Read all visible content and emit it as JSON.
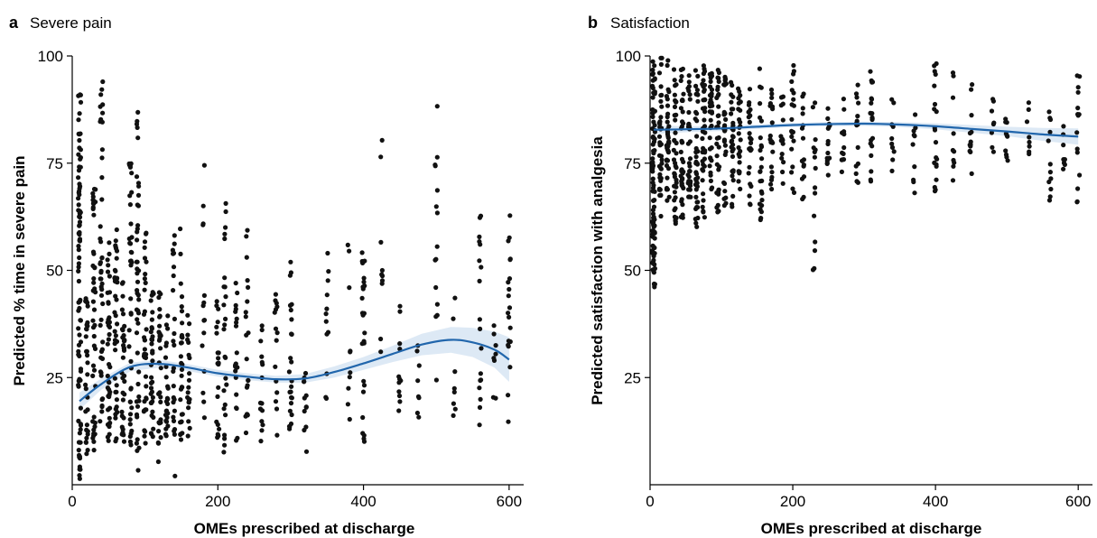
{
  "colors": {
    "points": "#111111",
    "trend": "#2166ac",
    "band": "#c6dbef"
  },
  "chart_data": [
    {
      "type": "scatter",
      "panel_label": "a",
      "title": "Severe pain",
      "xlabel": "OMEs prescribed at discharge",
      "ylabel": "Predicted % time in severe pain",
      "xlim": [
        0,
        620
      ],
      "ylim": [
        0,
        100
      ],
      "xticks": [
        0,
        200,
        400,
        600
      ],
      "yticks": [
        25,
        50,
        75,
        100
      ],
      "grid": false,
      "scatter_clusters": [
        {
          "x": 10,
          "n": 90,
          "y": [
            1,
            91
          ]
        },
        {
          "x": 20,
          "n": 30,
          "y": [
            5,
            45
          ]
        },
        {
          "x": 30,
          "n": 45,
          "y": [
            8,
            70
          ]
        },
        {
          "x": 40,
          "n": 45,
          "y": [
            12,
            94
          ]
        },
        {
          "x": 50,
          "n": 40,
          "y": [
            10,
            60
          ]
        },
        {
          "x": 60,
          "n": 40,
          "y": [
            10,
            60
          ]
        },
        {
          "x": 70,
          "n": 35,
          "y": [
            10,
            50
          ]
        },
        {
          "x": 80,
          "n": 40,
          "y": [
            8,
            75
          ]
        },
        {
          "x": 90,
          "n": 45,
          "y": [
            3,
            87
          ]
        },
        {
          "x": 100,
          "n": 35,
          "y": [
            9,
            60
          ]
        },
        {
          "x": 110,
          "n": 35,
          "y": [
            10,
            45
          ]
        },
        {
          "x": 120,
          "n": 30,
          "y": [
            5,
            45
          ]
        },
        {
          "x": 130,
          "n": 25,
          "y": [
            10,
            40
          ]
        },
        {
          "x": 140,
          "n": 25,
          "y": [
            2,
            60
          ]
        },
        {
          "x": 150,
          "n": 30,
          "y": [
            10,
            60
          ]
        },
        {
          "x": 160,
          "n": 20,
          "y": [
            10,
            40
          ]
        },
        {
          "x": 180,
          "n": 15,
          "y": [
            15,
            77
          ]
        },
        {
          "x": 200,
          "n": 20,
          "y": [
            10,
            45
          ]
        },
        {
          "x": 210,
          "n": 25,
          "y": [
            7,
            66
          ]
        },
        {
          "x": 225,
          "n": 20,
          "y": [
            10,
            55
          ]
        },
        {
          "x": 240,
          "n": 20,
          "y": [
            10,
            60
          ]
        },
        {
          "x": 260,
          "n": 15,
          "y": [
            10,
            40
          ]
        },
        {
          "x": 280,
          "n": 15,
          "y": [
            10,
            45
          ]
        },
        {
          "x": 300,
          "n": 25,
          "y": [
            10,
            54
          ]
        },
        {
          "x": 320,
          "n": 12,
          "y": [
            7,
            30
          ]
        },
        {
          "x": 350,
          "n": 12,
          "y": [
            15,
            60
          ]
        },
        {
          "x": 380,
          "n": 10,
          "y": [
            15,
            62
          ]
        },
        {
          "x": 400,
          "n": 25,
          "y": [
            10,
            56
          ]
        },
        {
          "x": 425,
          "n": 10,
          "y": [
            8,
            81
          ]
        },
        {
          "x": 450,
          "n": 12,
          "y": [
            15,
            45
          ]
        },
        {
          "x": 475,
          "n": 8,
          "y": [
            15,
            40
          ]
        },
        {
          "x": 500,
          "n": 15,
          "y": [
            20,
            91
          ]
        },
        {
          "x": 525,
          "n": 8,
          "y": [
            15,
            45
          ]
        },
        {
          "x": 560,
          "n": 18,
          "y": [
            12,
            65
          ]
        },
        {
          "x": 580,
          "n": 8,
          "y": [
            20,
            40
          ]
        },
        {
          "x": 600,
          "n": 20,
          "y": [
            11,
            64
          ]
        }
      ],
      "trend": {
        "x": [
          10,
          40,
          80,
          120,
          160,
          200,
          240,
          280,
          320,
          360,
          400,
          440,
          480,
          520,
          550,
          580,
          600
        ],
        "y": [
          19.5,
          23.5,
          27.5,
          28.2,
          27.3,
          26.0,
          25.2,
          24.6,
          24.8,
          26.3,
          28.3,
          30.5,
          32.7,
          33.8,
          33.2,
          31.5,
          29.2
        ],
        "lower": [
          17.5,
          22.2,
          26.5,
          27.3,
          26.5,
          25.2,
          24.4,
          23.8,
          23.8,
          25.0,
          26.8,
          28.6,
          30.2,
          30.8,
          29.8,
          27.3,
          24.0
        ],
        "upper": [
          21.5,
          24.8,
          28.5,
          29.1,
          28.1,
          26.8,
          26.0,
          25.4,
          25.8,
          27.6,
          29.8,
          32.4,
          35.2,
          36.8,
          36.6,
          35.7,
          34.4
        ]
      }
    },
    {
      "type": "scatter",
      "panel_label": "b",
      "title": "Satisfaction",
      "xlabel": "OMEs prescribed at discharge",
      "ylabel": "Predicted satisfaction with analgesia",
      "xlim": [
        0,
        620
      ],
      "ylim": [
        0,
        100
      ],
      "xticks": [
        0,
        200,
        400,
        600
      ],
      "yticks": [
        25,
        50,
        75,
        100
      ],
      "grid": false,
      "scatter_clusters": [
        {
          "x": 5,
          "n": 90,
          "y": [
            46,
            100
          ]
        },
        {
          "x": 15,
          "n": 40,
          "y": [
            62,
            100
          ]
        },
        {
          "x": 25,
          "n": 40,
          "y": [
            65,
            99
          ]
        },
        {
          "x": 35,
          "n": 40,
          "y": [
            60,
            98
          ]
        },
        {
          "x": 45,
          "n": 40,
          "y": [
            62,
            97
          ]
        },
        {
          "x": 55,
          "n": 35,
          "y": [
            65,
            96
          ]
        },
        {
          "x": 65,
          "n": 40,
          "y": [
            60,
            99
          ]
        },
        {
          "x": 75,
          "n": 40,
          "y": [
            62,
            99
          ]
        },
        {
          "x": 85,
          "n": 35,
          "y": [
            65,
            98
          ]
        },
        {
          "x": 95,
          "n": 35,
          "y": [
            63,
            97
          ]
        },
        {
          "x": 105,
          "n": 30,
          "y": [
            65,
            96
          ]
        },
        {
          "x": 115,
          "n": 30,
          "y": [
            64,
            95
          ]
        },
        {
          "x": 125,
          "n": 25,
          "y": [
            68,
            94
          ]
        },
        {
          "x": 140,
          "n": 25,
          "y": [
            65,
            93
          ]
        },
        {
          "x": 155,
          "n": 25,
          "y": [
            59,
            98
          ]
        },
        {
          "x": 170,
          "n": 20,
          "y": [
            68,
            95
          ]
        },
        {
          "x": 185,
          "n": 15,
          "y": [
            70,
            92
          ]
        },
        {
          "x": 200,
          "n": 20,
          "y": [
            68,
            100
          ]
        },
        {
          "x": 215,
          "n": 15,
          "y": [
            66,
            96
          ]
        },
        {
          "x": 230,
          "n": 15,
          "y": [
            49,
            95
          ]
        },
        {
          "x": 250,
          "n": 15,
          "y": [
            72,
            92
          ]
        },
        {
          "x": 270,
          "n": 12,
          "y": [
            72,
            90
          ]
        },
        {
          "x": 290,
          "n": 15,
          "y": [
            70,
            94
          ]
        },
        {
          "x": 310,
          "n": 20,
          "y": [
            70,
            99
          ]
        },
        {
          "x": 340,
          "n": 10,
          "y": [
            70,
            90
          ]
        },
        {
          "x": 370,
          "n": 10,
          "y": [
            68,
            88
          ]
        },
        {
          "x": 400,
          "n": 20,
          "y": [
            68,
            99
          ]
        },
        {
          "x": 425,
          "n": 10,
          "y": [
            70,
            97
          ]
        },
        {
          "x": 450,
          "n": 12,
          "y": [
            72,
            96
          ]
        },
        {
          "x": 480,
          "n": 8,
          "y": [
            76,
            90
          ]
        },
        {
          "x": 500,
          "n": 10,
          "y": [
            75,
            88
          ]
        },
        {
          "x": 530,
          "n": 8,
          "y": [
            75,
            92
          ]
        },
        {
          "x": 560,
          "n": 12,
          "y": [
            66,
            95
          ]
        },
        {
          "x": 580,
          "n": 8,
          "y": [
            72,
            90
          ]
        },
        {
          "x": 600,
          "n": 15,
          "y": [
            63,
            97
          ]
        }
      ],
      "trend": {
        "x": [
          5,
          50,
          100,
          150,
          200,
          250,
          300,
          350,
          400,
          450,
          500,
          550,
          600
        ],
        "y": [
          82.8,
          82.9,
          83.1,
          83.5,
          83.9,
          84.1,
          84.2,
          84.0,
          83.6,
          83.0,
          82.4,
          81.7,
          81.2
        ],
        "lower": [
          81.8,
          82.2,
          82.5,
          83.0,
          83.4,
          83.6,
          83.7,
          83.4,
          82.9,
          82.1,
          81.3,
          80.2,
          79.3
        ],
        "upper": [
          83.8,
          83.6,
          83.7,
          84.0,
          84.4,
          84.6,
          84.7,
          84.6,
          84.3,
          83.9,
          83.5,
          83.2,
          83.1
        ]
      }
    }
  ]
}
